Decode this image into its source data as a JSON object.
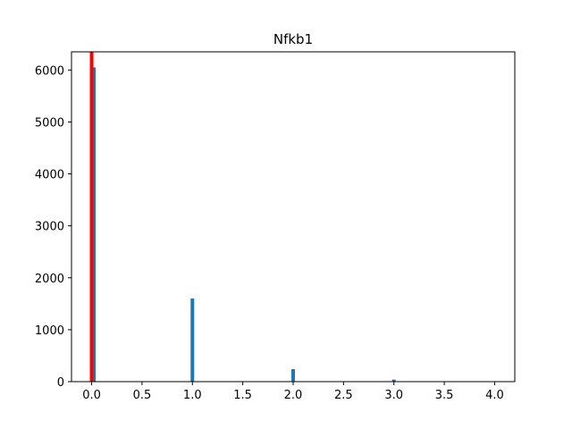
{
  "chart_data": {
    "type": "bar",
    "title": "Nfkb1",
    "xlim": [
      -0.2,
      4.2
    ],
    "ylim": [
      0,
      6350
    ],
    "xticks": [
      "0.0",
      "0.5",
      "1.0",
      "1.5",
      "2.0",
      "2.5",
      "3.0",
      "3.5",
      "4.0"
    ],
    "yticks": [
      "0",
      "1000",
      "2000",
      "3000",
      "4000",
      "5000",
      "6000"
    ],
    "series": [
      {
        "color": "#1f77b4",
        "bars": [
          {
            "x": 0.0,
            "y": 6050
          },
          {
            "x": 1.0,
            "y": 1600
          },
          {
            "x": 2.0,
            "y": 240
          },
          {
            "x": 3.0,
            "y": 40
          },
          {
            "x": 4.0,
            "y": 5
          }
        ]
      },
      {
        "color": "#ff0000",
        "bars": [
          {
            "x": 0.0,
            "y": 6350
          }
        ]
      }
    ]
  }
}
